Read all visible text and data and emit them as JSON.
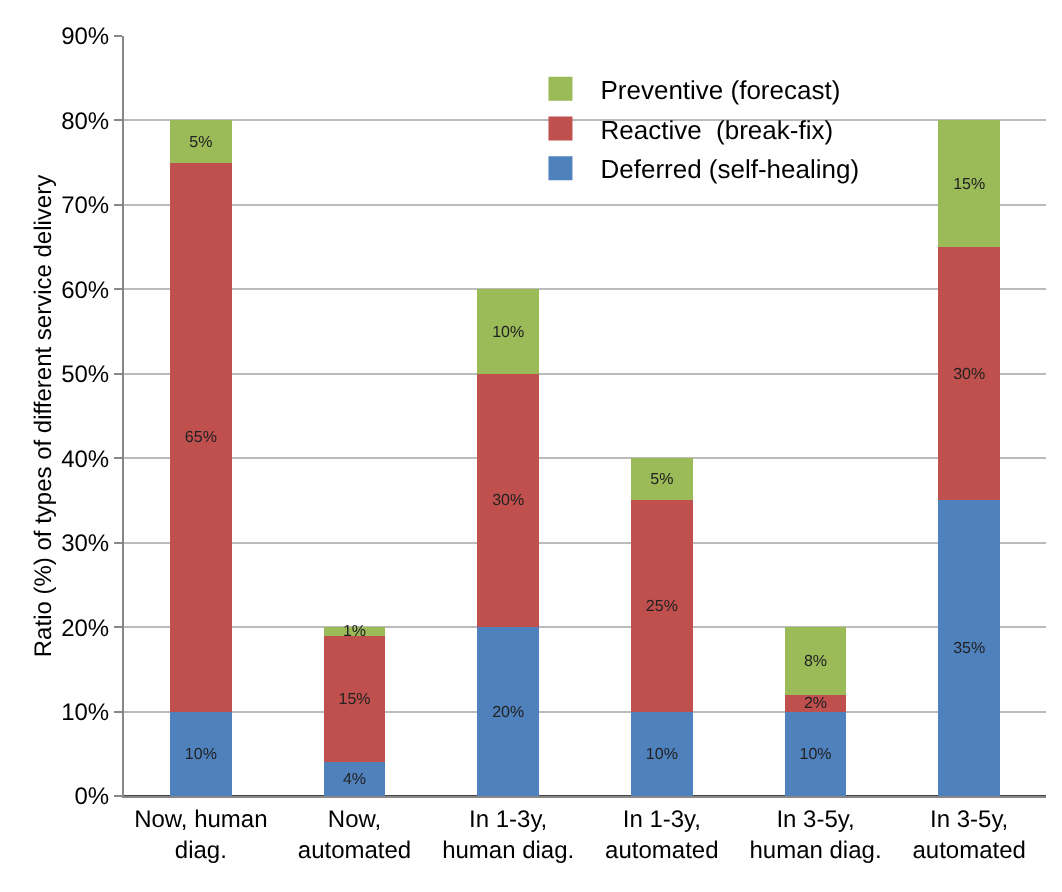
{
  "chart_data": {
    "type": "bar",
    "stacked": true,
    "ylabel": "Ratio (%) of types of different service delivery",
    "categories": [
      "Now, human\ndiag.",
      "Now,\nautomated",
      "In 1-3y,\nhuman diag.",
      "In 1-3y,\nautomated",
      "In 3-5y,\nhuman diag.",
      "In 3-5y,\nautomated"
    ],
    "series": [
      {
        "name": "Deferred (self-healing)",
        "color": "#4f81bd",
        "values": [
          10,
          4,
          20,
          10,
          10,
          35
        ],
        "value_labels": [
          "10%",
          "4%",
          "20%",
          "10%",
          "10%",
          "35%"
        ]
      },
      {
        "name": "Reactive  (break-fix)",
        "color": "#c0504d",
        "values": [
          65,
          15,
          30,
          25,
          2,
          30
        ],
        "value_labels": [
          "65%",
          "15%",
          "30%",
          "25%",
          "2%",
          "30%"
        ]
      },
      {
        "name": "Preventive (forecast)",
        "color": "#9bbb59",
        "values": [
          5,
          1,
          10,
          5,
          8,
          15
        ],
        "value_labels": [
          "5%",
          "1%",
          "10%",
          "5%",
          "8%",
          "15%"
        ]
      }
    ],
    "ylim": [
      0,
      90
    ],
    "yticks": [
      {
        "value": 0,
        "label": "0%"
      },
      {
        "value": 10,
        "label": "10%"
      },
      {
        "value": 20,
        "label": "20%"
      },
      {
        "value": 30,
        "label": "30%"
      },
      {
        "value": 40,
        "label": "40%"
      },
      {
        "value": 50,
        "label": "50%"
      },
      {
        "value": 60,
        "label": "60%"
      },
      {
        "value": 70,
        "label": "70%"
      },
      {
        "value": 80,
        "label": "80%"
      },
      {
        "value": 90,
        "label": "90%"
      }
    ],
    "grid": "y",
    "legend": "top right"
  }
}
